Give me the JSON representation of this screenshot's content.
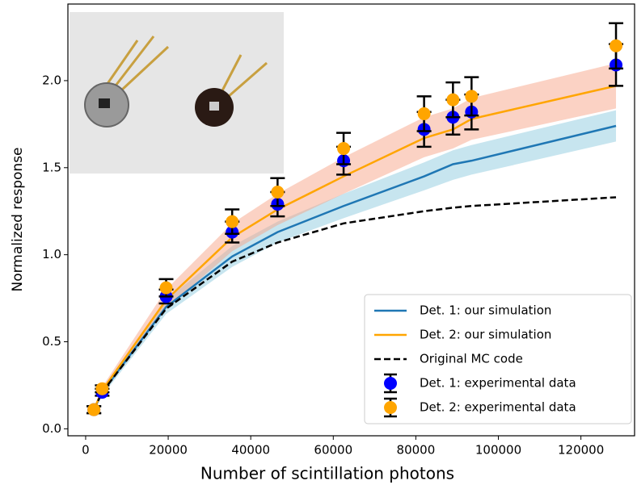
{
  "chart_data": {
    "type": "line",
    "x_label": "Number of scintillation photons",
    "y_label": "Normalized response",
    "x": [
      2000,
      4000,
      19500,
      35500,
      46500,
      62500,
      82000,
      89000,
      93500,
      128500
    ],
    "xlim": [
      -4300,
      133000
    ],
    "ylim": [
      -0.04,
      2.44
    ],
    "xticks": [
      0,
      20000,
      40000,
      60000,
      80000,
      100000,
      120000
    ],
    "yticks": [
      {
        "value": 0,
        "label": "0.0"
      },
      0.5,
      {
        "value": 1,
        "label": "1.0"
      },
      1.5,
      {
        "value": 2,
        "label": "2.0"
      }
    ],
    "legend": "lower right",
    "series": [
      {
        "name": "Det. 1: our simulation",
        "kind": "line",
        "color": "#1f77b4",
        "band_color": "#8fcbe0",
        "values": [
          0.11,
          0.21,
          0.7,
          0.99,
          1.13,
          1.28,
          1.45,
          1.52,
          1.54,
          1.74
        ],
        "band_lower": [
          0.1,
          0.19,
          0.66,
          0.93,
          1.07,
          1.21,
          1.37,
          1.43,
          1.46,
          1.65
        ],
        "band_upper": [
          0.12,
          0.23,
          0.74,
          1.05,
          1.19,
          1.35,
          1.53,
          1.6,
          1.63,
          1.83
        ]
      },
      {
        "name": "Det. 2: our simulation",
        "kind": "line",
        "color": "#ffa500",
        "band_color": "#f7a58a",
        "values": [
          0.11,
          0.22,
          0.74,
          1.1,
          1.26,
          1.45,
          1.67,
          1.72,
          1.78,
          1.97
        ],
        "band_lower": [
          0.1,
          0.2,
          0.69,
          1.02,
          1.17,
          1.35,
          1.56,
          1.61,
          1.66,
          1.84
        ],
        "band_upper": [
          0.12,
          0.24,
          0.8,
          1.18,
          1.35,
          1.56,
          1.79,
          1.84,
          1.9,
          2.1
        ]
      },
      {
        "name": "Original MC code",
        "kind": "line",
        "color": "#000000",
        "linestyle": "dashed",
        "values": [
          0.11,
          0.21,
          0.69,
          0.96,
          1.07,
          1.18,
          1.25,
          1.27,
          1.28,
          1.33
        ]
      },
      {
        "name": "Det. 1: experimental data",
        "kind": "errorbar",
        "color": "#0000ff",
        "values": [
          0.11,
          0.21,
          0.76,
          1.13,
          1.29,
          1.54,
          1.72,
          1.79,
          1.82,
          2.09
        ],
        "errors": [
          0.02,
          0.02,
          0.04,
          0.06,
          0.07,
          0.08,
          0.1,
          0.1,
          0.1,
          0.12
        ]
      },
      {
        "name": "Det. 2: experimental data",
        "kind": "errorbar",
        "color": "#ffa500",
        "values": [
          0.11,
          0.23,
          0.81,
          1.19,
          1.36,
          1.61,
          1.81,
          1.89,
          1.91,
          2.2
        ],
        "errors": [
          0.02,
          0.02,
          0.05,
          0.07,
          0.08,
          0.09,
          0.1,
          0.1,
          0.11,
          0.13
        ]
      }
    ]
  }
}
